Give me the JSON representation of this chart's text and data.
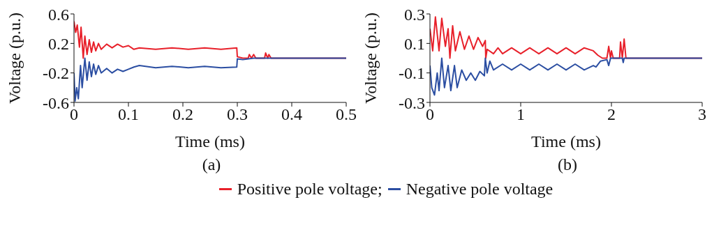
{
  "chart_data": [
    {
      "type": "line",
      "xlabel": "Time (ms)",
      "ylabel": "Voltage (p.u.)",
      "annotations": [
        "(a)"
      ],
      "xlim": [
        0,
        0.5
      ],
      "xticks": [
        0,
        0.1,
        0.2,
        0.3,
        0.4,
        0.5
      ],
      "ylim": [
        -0.6,
        0.6
      ],
      "yticks": [
        -0.6,
        -0.2,
        0.2,
        0.6
      ],
      "grid": false,
      "legend": "bottom",
      "marker": "none",
      "line_style": "solid",
      "series": [
        {
          "name": "Positive pole voltage;",
          "color": "#e8202a",
          "x": [
            0,
            0.003,
            0.006,
            0.01,
            0.013,
            0.017,
            0.02,
            0.024,
            0.028,
            0.032,
            0.036,
            0.04,
            0.045,
            0.05,
            0.06,
            0.07,
            0.08,
            0.09,
            0.1,
            0.11,
            0.12,
            0.15,
            0.18,
            0.21,
            0.24,
            0.27,
            0.299,
            0.3,
            0.31,
            0.32,
            0.322,
            0.326,
            0.33,
            0.334,
            0.35,
            0.352,
            0.356,
            0.358,
            0.362,
            0.4,
            0.5
          ],
          "values": [
            0.5,
            0.35,
            0.45,
            0.15,
            0.42,
            0.0,
            0.3,
            0.05,
            0.25,
            0.08,
            0.22,
            0.1,
            0.2,
            0.12,
            0.19,
            0.14,
            0.19,
            0.15,
            0.17,
            0.12,
            0.14,
            0.12,
            0.14,
            0.12,
            0.14,
            0.12,
            0.14,
            0.02,
            0.0,
            0.0,
            0.05,
            0.0,
            0.05,
            0.0,
            0.0,
            0.07,
            0.0,
            0.05,
            0.0,
            0.0,
            0.0
          ]
        },
        {
          "name": "Negative pole voltage",
          "color": "#2b4ea2",
          "x": [
            0,
            0.002,
            0.005,
            0.008,
            0.012,
            0.015,
            0.02,
            0.024,
            0.028,
            0.032,
            0.036,
            0.04,
            0.045,
            0.05,
            0.06,
            0.07,
            0.08,
            0.09,
            0.1,
            0.11,
            0.12,
            0.15,
            0.18,
            0.21,
            0.24,
            0.27,
            0.299,
            0.3,
            0.31,
            0.33,
            0.5
          ],
          "values": [
            -0.2,
            -0.58,
            -0.4,
            -0.55,
            -0.1,
            -0.4,
            0.0,
            -0.3,
            -0.05,
            -0.25,
            -0.08,
            -0.22,
            -0.1,
            -0.2,
            -0.14,
            -0.2,
            -0.15,
            -0.18,
            -0.15,
            -0.12,
            -0.1,
            -0.13,
            -0.11,
            -0.13,
            -0.11,
            -0.13,
            -0.12,
            -0.01,
            -0.02,
            0.0,
            0.0
          ]
        }
      ]
    },
    {
      "type": "line",
      "xlabel": "Time (ms)",
      "ylabel": "Voltage (p.u.)",
      "annotations": [
        "(b)"
      ],
      "xlim": [
        0,
        3
      ],
      "xticks": [
        0,
        1,
        2,
        3
      ],
      "ylim": [
        -0.3,
        0.3
      ],
      "yticks": [
        -0.3,
        -0.1,
        0.1,
        0.3
      ],
      "grid": false,
      "marker": "none",
      "line_style": "solid",
      "series": [
        {
          "color": "#e8202a",
          "x": [
            0,
            0.03,
            0.06,
            0.1,
            0.13,
            0.17,
            0.2,
            0.22,
            0.25,
            0.28,
            0.33,
            0.38,
            0.43,
            0.48,
            0.53,
            0.58,
            0.61,
            0.615,
            0.63,
            0.7,
            0.75,
            0.8,
            0.9,
            1.0,
            1.1,
            1.2,
            1.3,
            1.4,
            1.5,
            1.6,
            1.7,
            1.8,
            1.85,
            1.9,
            1.95,
            1.97,
            1.99,
            2.0,
            2.02,
            2.09,
            2.1,
            2.12,
            2.14,
            2.16,
            3
          ],
          "values": [
            0.2,
            0.05,
            0.28,
            0.05,
            0.27,
            0.08,
            0.2,
            0.0,
            0.22,
            0.05,
            0.18,
            0.06,
            0.15,
            0.06,
            0.14,
            0.08,
            0.12,
            0.0,
            0.06,
            0.03,
            0.07,
            0.03,
            0.07,
            0.03,
            0.07,
            0.03,
            0.07,
            0.03,
            0.07,
            0.03,
            0.07,
            0.05,
            0.02,
            0.0,
            0.0,
            0.08,
            0.0,
            0.05,
            0.0,
            0.0,
            0.11,
            0.0,
            0.13,
            0.0,
            0.0
          ]
        },
        {
          "color": "#2b4ea2",
          "x": [
            0,
            0.02,
            0.05,
            0.08,
            0.1,
            0.13,
            0.16,
            0.2,
            0.23,
            0.27,
            0.3,
            0.35,
            0.4,
            0.45,
            0.5,
            0.55,
            0.6,
            0.61,
            0.63,
            0.66,
            0.7,
            0.8,
            0.9,
            1.0,
            1.1,
            1.2,
            1.3,
            1.4,
            1.5,
            1.6,
            1.7,
            1.8,
            1.83,
            1.88,
            1.95,
            1.97,
            1.99,
            2.12,
            2.13,
            2.14,
            3
          ],
          "values": [
            -0.05,
            -0.2,
            -0.25,
            -0.1,
            -0.22,
            0.0,
            -0.2,
            -0.05,
            -0.22,
            -0.05,
            -0.2,
            -0.08,
            -0.15,
            -0.1,
            -0.15,
            -0.09,
            -0.12,
            0.0,
            -0.1,
            -0.02,
            -0.08,
            -0.04,
            -0.08,
            -0.04,
            -0.08,
            -0.04,
            -0.08,
            -0.04,
            -0.08,
            -0.04,
            -0.08,
            -0.05,
            -0.06,
            -0.02,
            -0.01,
            -0.05,
            0.0,
            0.0,
            -0.03,
            0.0,
            0.0
          ]
        }
      ]
    }
  ]
}
